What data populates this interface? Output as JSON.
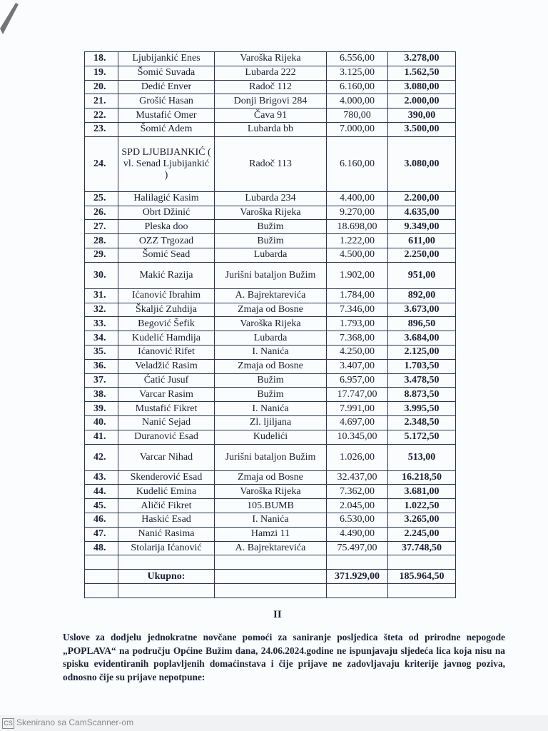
{
  "table": {
    "rows": [
      {
        "no": "18.",
        "name": "Ljubijankić Enes",
        "address": "Varoška Rijeka",
        "amount": "6.556,00",
        "half": "3.278,00"
      },
      {
        "no": "19.",
        "name": "Šomić Suvada",
        "address": "Lubarda 222",
        "amount": "3.125,00",
        "half": "1.562,50"
      },
      {
        "no": "20.",
        "name": "Dedić Enver",
        "address": "Radoč 112",
        "amount": "6.160,00",
        "half": "3.080,00"
      },
      {
        "no": "21.",
        "name": "Grošić Hasan",
        "address": "Donji Brigovi 284",
        "amount": "4.000,00",
        "half": "2.000,00"
      },
      {
        "no": "22.",
        "name": "Mustafić Omer",
        "address": "Čava 91",
        "amount": "780,00",
        "half": "390,00"
      },
      {
        "no": "23.",
        "name": "Šomić Adem",
        "address": "Lubarda bb",
        "amount": "7.000,00",
        "half": "3.500,00"
      },
      {
        "no": "24.",
        "name": "SPD LJUBIJANKIĆ ( vl. Senad Ljubijankić )",
        "address": "Radoč 113",
        "amount": "6.160,00",
        "half": "3.080,00"
      },
      {
        "no": "25.",
        "name": "Halilagić Kasim",
        "address": "Lubarda 234",
        "amount": "4.400,00",
        "half": "2.200,00"
      },
      {
        "no": "26.",
        "name": "Obrt Džinić",
        "address": "Varoška Rijeka",
        "amount": "9.270,00",
        "half": "4.635,00"
      },
      {
        "no": "27.",
        "name": "Pleska doo",
        "address": "Bužim",
        "amount": "18.698,00",
        "half": "9.349,00"
      },
      {
        "no": "28.",
        "name": "OZZ Trgozad",
        "address": "Bužim",
        "amount": "1.222,00",
        "half": "611,00"
      },
      {
        "no": "29.",
        "name": "Šomić Sead",
        "address": "Lubarda",
        "amount": "4.500,00",
        "half": "2.250,00"
      },
      {
        "no": "30.",
        "name": "Makić Razija",
        "address": "Jurišni bataljon Bužim",
        "amount": "1.902,00",
        "half": "951,00"
      },
      {
        "no": "31.",
        "name": "Ićanović Ibrahim",
        "address": "A. Bajrektarevića",
        "amount": "1.784,00",
        "half": "892,00"
      },
      {
        "no": "32.",
        "name": "Škaljić Zuhdija",
        "address": "Zmaja od Bosne",
        "amount": "7.346,00",
        "half": "3.673,00"
      },
      {
        "no": "33.",
        "name": "Begović Šefik",
        "address": "Varoška Rijeka",
        "amount": "1.793,00",
        "half": "896,50"
      },
      {
        "no": "34.",
        "name": "Kudelić Hamdija",
        "address": "Lubarda",
        "amount": "7.368,00",
        "half": "3.684,00"
      },
      {
        "no": "35.",
        "name": "Ićanović Rifet",
        "address": "I. Nanića",
        "amount": "4.250,00",
        "half": "2.125,00"
      },
      {
        "no": "36.",
        "name": "Veladžić Rasim",
        "address": "Zmaja od Bosne",
        "amount": "3.407,00",
        "half": "1.703,50"
      },
      {
        "no": "37.",
        "name": "Ćatić Jusuf",
        "address": "Bužim",
        "amount": "6.957,00",
        "half": "3.478,50"
      },
      {
        "no": "38.",
        "name": "Varcar Rasim",
        "address": "Bužim",
        "amount": "17.747,00",
        "half": "8.873,50"
      },
      {
        "no": "39.",
        "name": "Mustafić Fikret",
        "address": "I. Nanića",
        "amount": "7.991,00",
        "half": "3.995,50"
      },
      {
        "no": "40.",
        "name": "Nanić Sejad",
        "address": "Zl. ljiljana",
        "amount": "4.697,00",
        "half": "2.348,50"
      },
      {
        "no": "41.",
        "name": "Duranović Esad",
        "address": "Kudelići",
        "amount": "10.345,00",
        "half": "5.172,50"
      },
      {
        "no": "42.",
        "name": "Varcar Nihad",
        "address": "Jurišni bataljon Bužim",
        "amount": "1.026,00",
        "half": "513,00"
      },
      {
        "no": "43.",
        "name": "Skenderović Esad",
        "address": "Zmaja od Bosne",
        "amount": "32.437,00",
        "half": "16.218,50"
      },
      {
        "no": "44.",
        "name": "Kudelić Emina",
        "address": "Varoška Rijeka",
        "amount": "7.362,00",
        "half": "3.681,00"
      },
      {
        "no": "45.",
        "name": "Aličić Fikret",
        "address": "105.BUMB",
        "amount": "2.045,00",
        "half": "1.022,50"
      },
      {
        "no": "46.",
        "name": "Haskić Esad",
        "address": "I. Nanića",
        "amount": "6.530,00",
        "half": "3.265,00"
      },
      {
        "no": "47.",
        "name": "Nanić Rasima",
        "address": "Hamzi 11",
        "amount": "4.490,00",
        "half": "2.245,00"
      },
      {
        "no": "48.",
        "name": "Stolarija Ićanović",
        "address": "A. Bajrektarevića",
        "amount": "75.497,00",
        "half": "37.748,50"
      }
    ],
    "total": {
      "label": "Ukupno:",
      "amount": "371.929,00",
      "half": "185.964,50"
    }
  },
  "section": {
    "numeral": "II",
    "paragraph": "Uslove za dodjelu jednokratne novčane pomoći za saniranje posljedica šteta od prirodne nepogode „POPLAVA“ na području Općine Bužim dana, 24.06.2024.godine ne ispunjavaju sljedeća lica koja nisu na spisku evidentiranih poplavljenih domaćinstava i čije prijave ne zadovljavaju kriterije javnog poziva, odnosno čije su prijave nepotpune:"
  },
  "footer": {
    "logo": "CS",
    "text": "Skenirano sa CamScanner-om"
  }
}
